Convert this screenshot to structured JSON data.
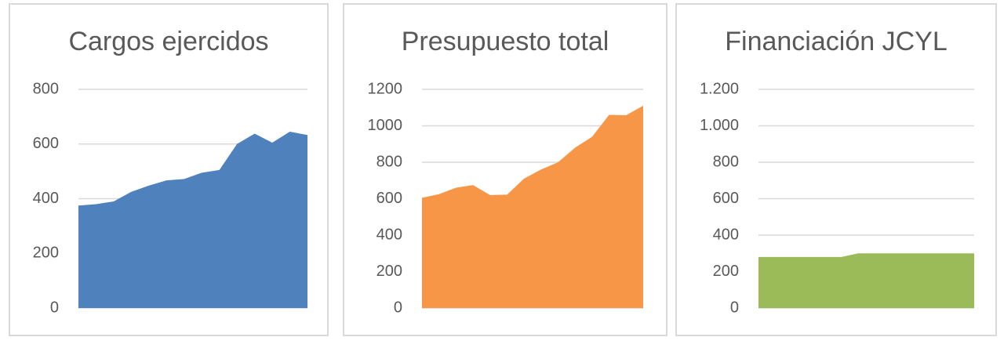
{
  "chart_data": [
    {
      "type": "area",
      "title": "Cargos ejercidos",
      "categories": [
        null,
        null,
        null,
        null,
        null,
        null,
        null,
        null,
        null,
        null,
        null,
        null,
        null,
        null
      ],
      "values": [
        375,
        380,
        390,
        425,
        448,
        467,
        472,
        495,
        505,
        600,
        638,
        605,
        645,
        633
      ],
      "color": "#4f81bd",
      "ylim": [
        0,
        800
      ],
      "yticks": [
        0,
        200,
        400,
        600,
        800
      ],
      "grid": true
    },
    {
      "type": "area",
      "title": "Presupuesto total",
      "categories": [
        null,
        null,
        null,
        null,
        null,
        null,
        null,
        null,
        null,
        null,
        null,
        null,
        null,
        null
      ],
      "values": [
        605,
        625,
        660,
        675,
        620,
        622,
        710,
        760,
        800,
        880,
        940,
        1060,
        1058,
        1110
      ],
      "color": "#f79646",
      "ylim": [
        0,
        1200
      ],
      "yticks": [
        0,
        200,
        400,
        600,
        800,
        1000,
        1200
      ],
      "grid": true
    },
    {
      "type": "area",
      "title": "Financiación JCYL",
      "categories": [
        null,
        null,
        null,
        null,
        null,
        null,
        null,
        null,
        null,
        null,
        null,
        null,
        null,
        null
      ],
      "values": [
        280,
        280,
        280,
        280,
        280,
        280,
        300,
        300,
        300,
        300,
        300,
        300,
        300,
        300
      ],
      "color": "#9bbb59",
      "ylim": [
        0,
        1200
      ],
      "yticks": [
        0,
        200,
        400,
        600,
        800,
        {
          "value": 1000,
          "label": "1.000"
        },
        {
          "value": 1200,
          "label": "1.200"
        }
      ],
      "grid": true
    }
  ]
}
